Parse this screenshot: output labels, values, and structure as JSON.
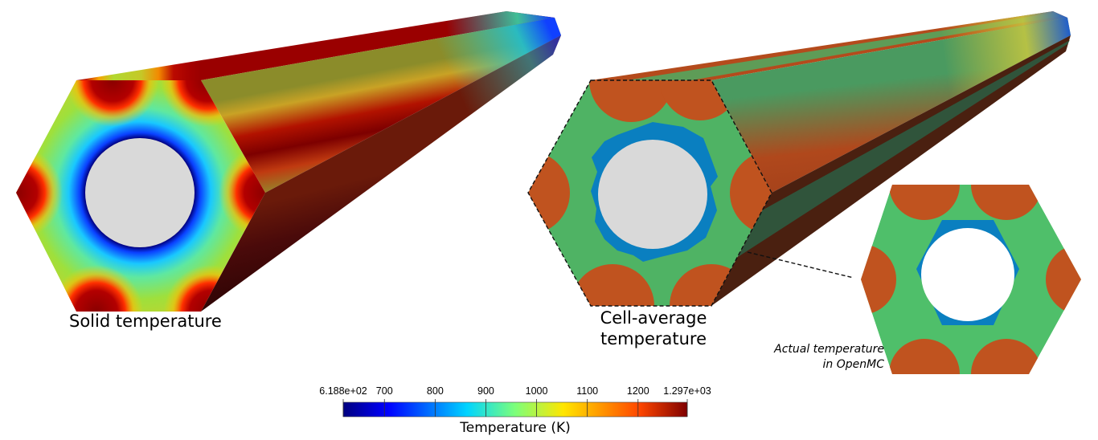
{
  "labels": {
    "solid": "Solid temperature",
    "cell_line1": "Cell-average",
    "cell_line2": "temperature",
    "actual_line1": "Actual temperature",
    "actual_line2": "in OpenMC"
  },
  "colorbar": {
    "title": "Temperature (K)",
    "min_label": "6.188e+02",
    "max_label": "1.297e+03",
    "min": 618.8,
    "max": 1297,
    "ticks": [
      "700",
      "800",
      "900",
      "1000",
      "1100",
      "1200"
    ],
    "colormap": [
      "#00007f",
      "#0000ff",
      "#00d4ff",
      "#7dff7a",
      "#ffe600",
      "#ff4700",
      "#7f0000"
    ]
  },
  "colors": {
    "cell_green": "#4fb364",
    "cell_orange": "#c0531f",
    "cell_blue": "#0a7fc0",
    "void_gray": "#d9d9d9"
  }
}
